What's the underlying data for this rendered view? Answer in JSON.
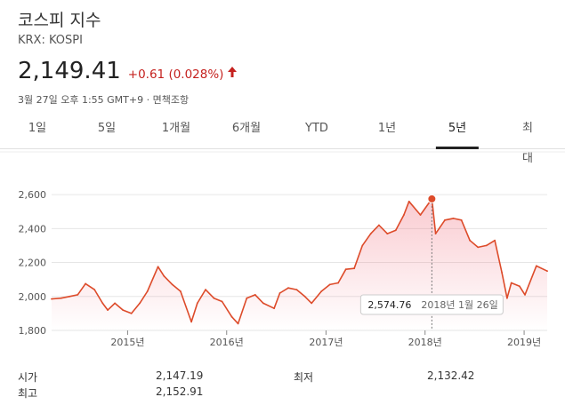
{
  "header": {
    "title": "코스피 지수",
    "ticker": "KRX: KOSPI",
    "price": "2,149.41",
    "change": "+0.61 (0.028%)",
    "meta": "3월 27일 오후 1:55 GMT+9 · 면책조항"
  },
  "colors": {
    "accent": "#dd4b2a",
    "up": "#c5221f"
  },
  "tabs": [
    {
      "label": "1일",
      "active": false
    },
    {
      "label": "5일",
      "active": false
    },
    {
      "label": "1개월",
      "active": false
    },
    {
      "label": "6개월",
      "active": false
    },
    {
      "label": "YTD",
      "active": false
    },
    {
      "label": "1년",
      "active": false
    },
    {
      "label": "5년",
      "active": true
    },
    {
      "label": "최대",
      "active": false
    }
  ],
  "stats": [
    {
      "label": "시가",
      "value": "2,147.19"
    },
    {
      "label": "최저",
      "value": "2,132.42"
    },
    {
      "label": "최고",
      "value": "2,152.91"
    }
  ],
  "chart_data": {
    "type": "area",
    "y_ticks": [
      "2,600",
      "2,400",
      "2,200",
      "2,000",
      "1,800"
    ],
    "y_tick_values": [
      2600,
      2400,
      2200,
      2000,
      1800
    ],
    "x_ticks": [
      "2015년",
      "2016년",
      "2017년",
      "2018년",
      "2019년"
    ],
    "x_tick_values": [
      "2015-01-01",
      "2016-01-01",
      "2017-01-01",
      "2018-01-01",
      "2019-01-01"
    ],
    "ylim": [
      1800,
      2700
    ],
    "xlim": [
      "2014-03-27",
      "2019-03-27"
    ],
    "grid": true,
    "tooltip": {
      "value": "2,574.76",
      "date": "2018년 1월 26일"
    },
    "highlight": {
      "x": "2018-01-26",
      "y": 2574.76
    },
    "series": [
      {
        "x": [
          "2014-03-27",
          "2014-05-01",
          "2014-06-01",
          "2014-07-01",
          "2014-07-30",
          "2014-09-01",
          "2014-10-01",
          "2014-10-20",
          "2014-11-15",
          "2014-12-15",
          "2015-01-15",
          "2015-02-15",
          "2015-03-15",
          "2015-04-23",
          "2015-05-15",
          "2015-06-15",
          "2015-07-15",
          "2015-08-24",
          "2015-09-15",
          "2015-10-15",
          "2015-11-15",
          "2015-12-15",
          "2016-01-20",
          "2016-02-12",
          "2016-03-15",
          "2016-04-15",
          "2016-05-15",
          "2016-06-24",
          "2016-07-15",
          "2016-08-15",
          "2016-09-15",
          "2016-10-15",
          "2016-11-09",
          "2016-12-15",
          "2017-01-15",
          "2017-02-15",
          "2017-03-15",
          "2017-04-15",
          "2017-05-15",
          "2017-06-15",
          "2017-07-15",
          "2017-08-15",
          "2017-09-15",
          "2017-10-15",
          "2017-11-03",
          "2017-12-15",
          "2018-01-26",
          "2018-02-09",
          "2018-03-15",
          "2018-04-15",
          "2018-05-15",
          "2018-06-15",
          "2018-07-15",
          "2018-08-15",
          "2018-09-15",
          "2018-10-11",
          "2018-10-30",
          "2018-11-15",
          "2018-12-15",
          "2019-01-04",
          "2019-02-15",
          "2019-03-27"
        ],
        "y": [
          1985,
          1990,
          2000,
          2010,
          2075,
          2040,
          1960,
          1920,
          1960,
          1920,
          1900,
          1960,
          2030,
          2175,
          2120,
          2070,
          2030,
          1850,
          1960,
          2040,
          1990,
          1970,
          1880,
          1840,
          1990,
          2010,
          1960,
          1930,
          2020,
          2050,
          2040,
          2000,
          1960,
          2030,
          2070,
          2080,
          2160,
          2165,
          2300,
          2370,
          2420,
          2370,
          2390,
          2480,
          2560,
          2480,
          2574.76,
          2370,
          2450,
          2460,
          2450,
          2330,
          2290,
          2300,
          2330,
          2140,
          1990,
          2080,
          2060,
          2010,
          2180,
          2149.41
        ]
      }
    ]
  }
}
